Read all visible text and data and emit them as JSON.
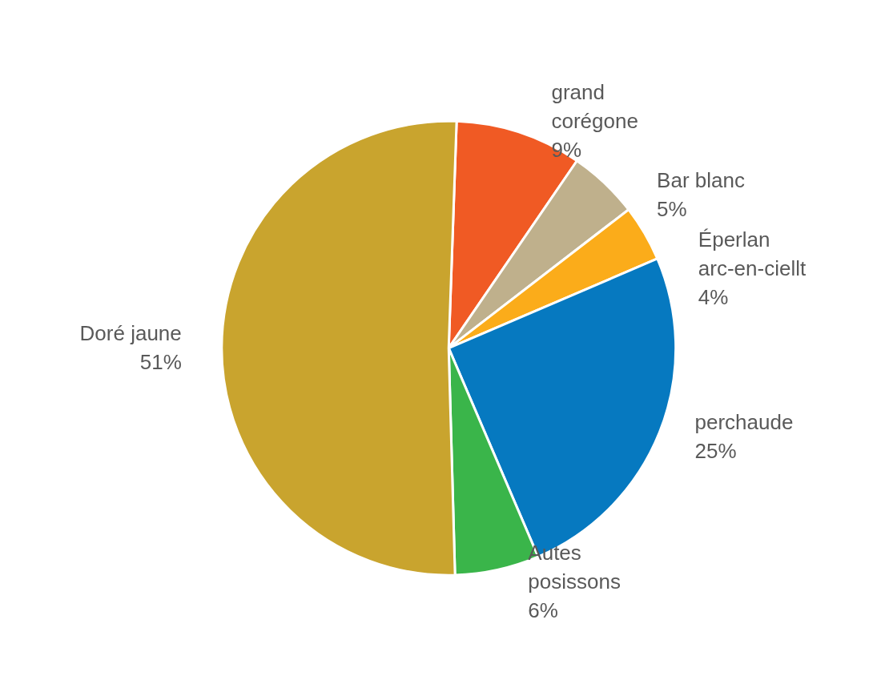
{
  "chart_data": {
    "type": "pie",
    "categories": [
      "grand corégone",
      "Bar blanc",
      "Éperlan arc-en-ciellt",
      "perchaude",
      "Autes posissons",
      "Doré jaune"
    ],
    "values": [
      9,
      5,
      4,
      25,
      6,
      51
    ],
    "value_labels": [
      "9%",
      "5%",
      "4%",
      "25%",
      "6%",
      "51%"
    ],
    "colors": [
      "#f05a24",
      "#bfb08c",
      "#fbac1a",
      "#0679c0",
      "#3ab54a",
      "#c9a42e"
    ],
    "legend": false
  }
}
